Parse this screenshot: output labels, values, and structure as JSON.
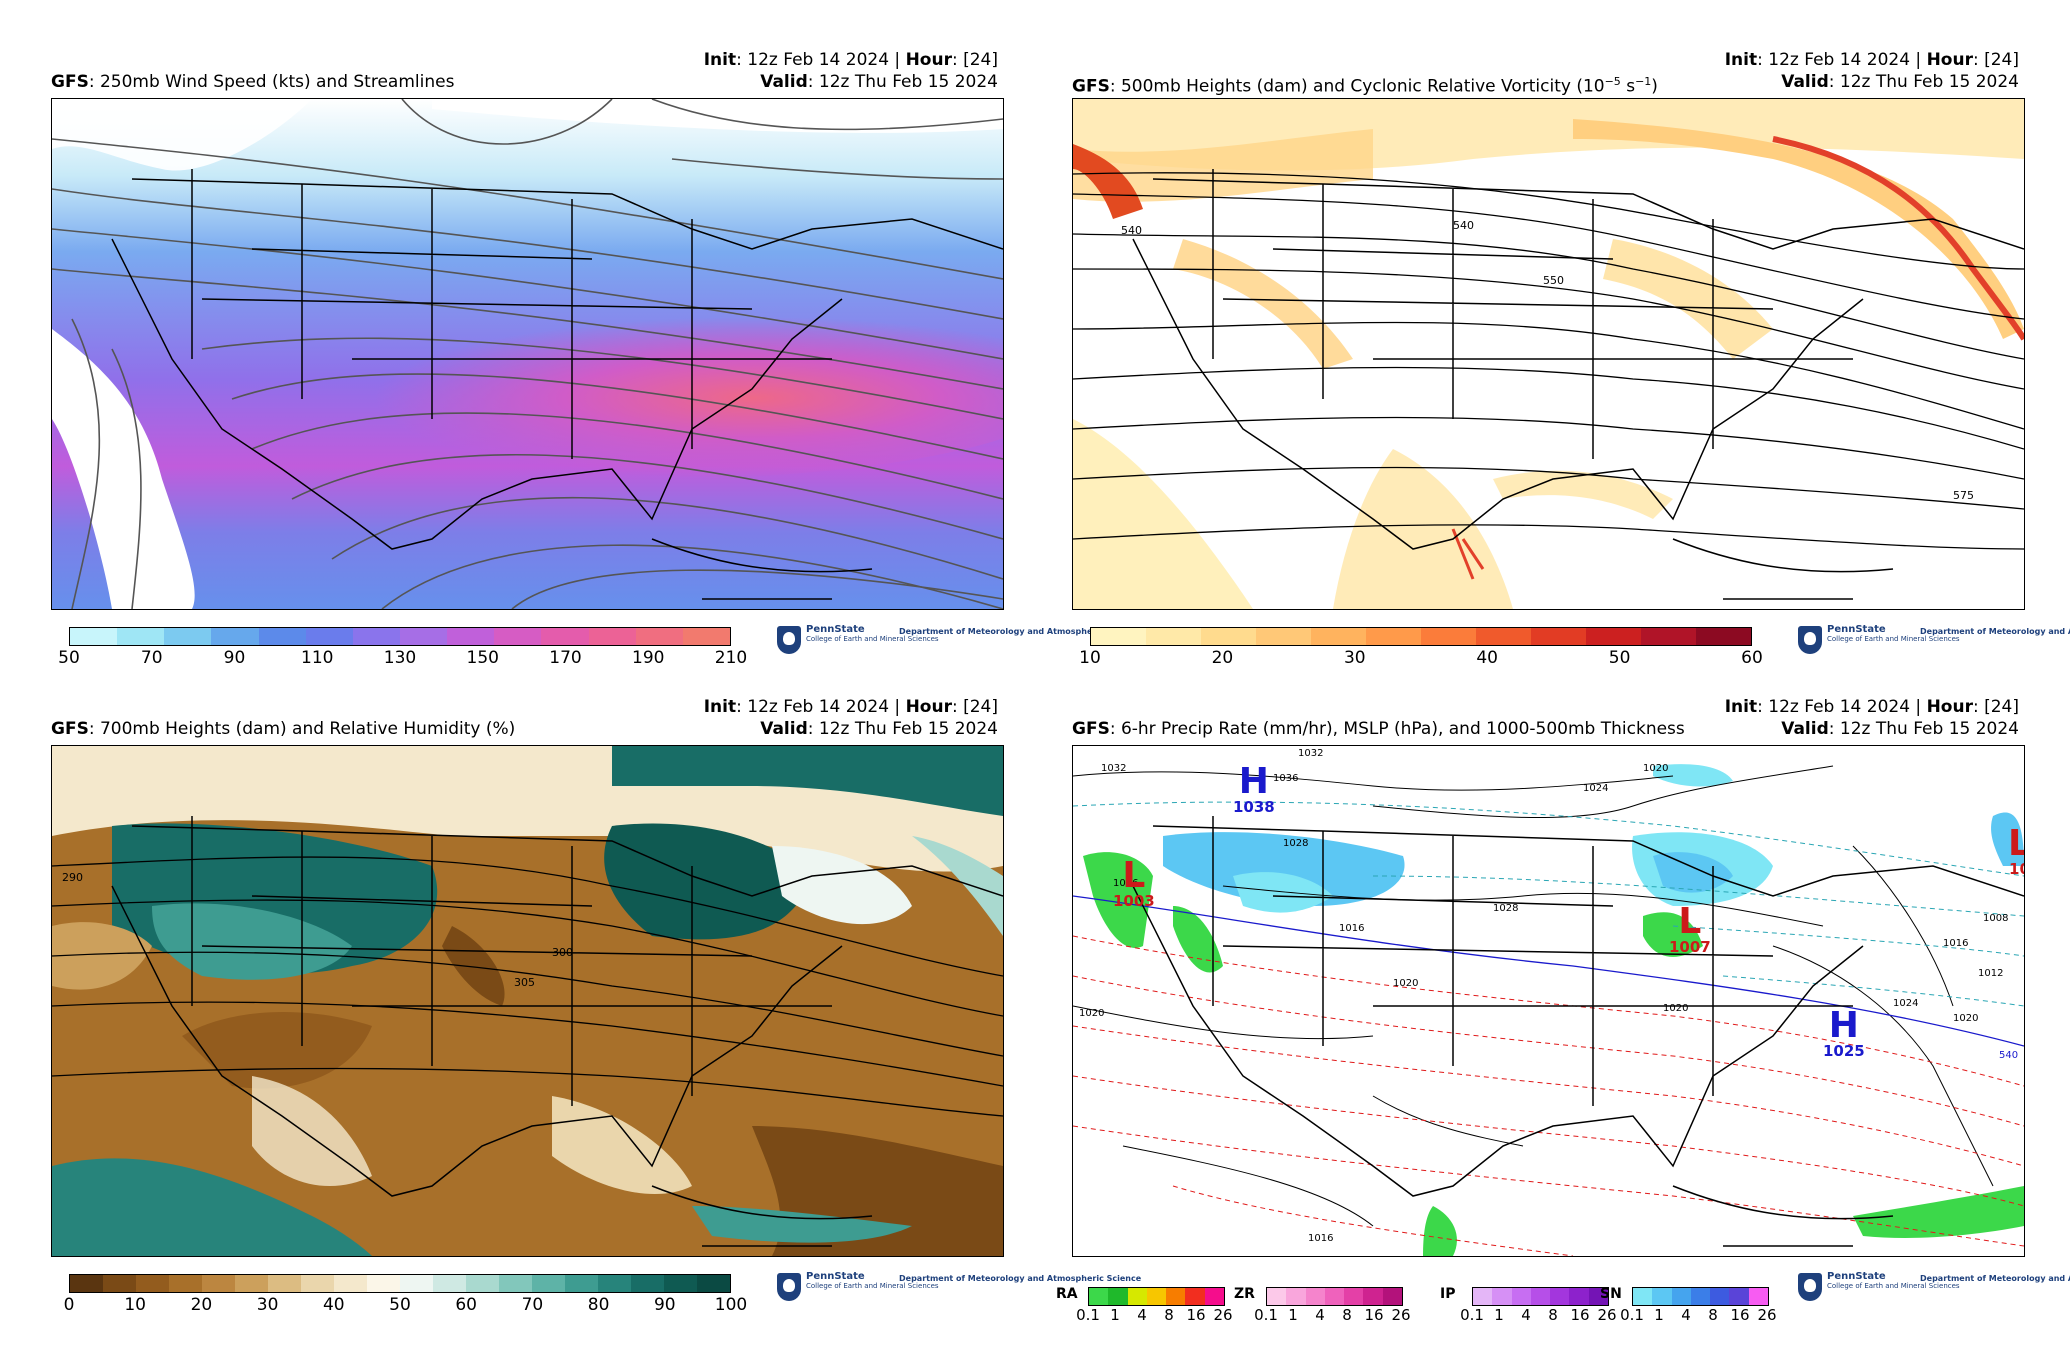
{
  "common": {
    "init_label": "Init",
    "init_value": ": 12z Feb 14 2024 | ",
    "hour_label": "Hour",
    "hour_value": ": [24]",
    "valid_label": "Valid",
    "valid_value": ": 12z Thu Feb 15 2024",
    "model": "GFS",
    "logo_name": "PennState",
    "logo_college": "College of Earth and Mineral Sciences",
    "logo_dept": "Department of Meteorology and Atmospheric Science"
  },
  "panels": [
    {
      "title": ": 250mb Wind Speed (kts) and Streamlines",
      "colorbar": {
        "ticks": [
          "50",
          "70",
          "90",
          "110",
          "130",
          "150",
          "170",
          "190",
          "210"
        ],
        "colors": [
          "#c8f5fb",
          "#9fe6f5",
          "#7ccaf0",
          "#66a8ec",
          "#5c8aea",
          "#6a7cec",
          "#8a74ec",
          "#a66ee6",
          "#c060da",
          "#d65cc4",
          "#e45cac",
          "#ec6296",
          "#f06e80",
          "#f27a6e"
        ]
      }
    },
    {
      "title": ": 500mb Heights (dam) and Cyclonic Relative Vorticity (10",
      "title_sup1": "−5",
      "title_mid": " s",
      "title_sup2": "−1",
      "title_end": ")",
      "colorbar": {
        "ticks": [
          "10",
          "20",
          "30",
          "40",
          "50",
          "60"
        ],
        "colors": [
          "#fff4c0",
          "#ffe9a8",
          "#ffdb8e",
          "#ffc877",
          "#ffb35e",
          "#ff9a4a",
          "#fb7c3a",
          "#f05a2c",
          "#e23c24",
          "#cc2020",
          "#b01428",
          "#8c0a22"
        ]
      },
      "contour_labels": [
        "540",
        "540",
        "550",
        "575"
      ]
    },
    {
      "title": ": 700mb Heights (dam) and Relative Humidity (%)",
      "colorbar": {
        "ticks": [
          "0",
          "10",
          "20",
          "30",
          "40",
          "50",
          "60",
          "70",
          "80",
          "90",
          "100"
        ],
        "colors": [
          "#5a3510",
          "#7a4a16",
          "#935c1e",
          "#a8702a",
          "#bc8640",
          "#cca05c",
          "#dcbc82",
          "#ead6ac",
          "#f4e8cc",
          "#fbf6e8",
          "#eef6f2",
          "#cfe9e3",
          "#a9d9cf",
          "#82c7bb",
          "#5eb3a7",
          "#3e9c91",
          "#27847b",
          "#186d66",
          "#0f5a52",
          "#0b4a43"
        ]
      },
      "contour_labels": [
        "290",
        "305",
        "300"
      ]
    },
    {
      "title": ": 6-hr Precip Rate (mm/hr), MSLP (hPa), and 1000-500mb Thickness",
      "precip_bars": [
        {
          "label": "RA",
          "colors": [
            "#3cd84a",
            "#1fb92b",
            "#d6e800",
            "#f7c600",
            "#f77d00",
            "#f22e1f",
            "#f50d8c"
          ]
        },
        {
          "label": "ZR",
          "colors": [
            "#fcc9e9",
            "#f9a6dc",
            "#f584cc",
            "#ef62bc",
            "#e440a7",
            "#cf2390",
            "#b3127b"
          ]
        },
        {
          "label": "IP",
          "colors": [
            "#e4b6f7",
            "#d690f5",
            "#c76ef2",
            "#b64fe8",
            "#a336dd",
            "#8d22cc",
            "#7414b5"
          ]
        },
        {
          "label": "SN",
          "colors": [
            "#7fe6f5",
            "#5cc7f3",
            "#45a4ee",
            "#3b7ee8",
            "#3d5be0",
            "#5a44d8",
            "#f75cf2"
          ]
        }
      ],
      "precip_ticks": [
        "0.1",
        "1",
        "4",
        "8",
        "16",
        "26"
      ],
      "systems": [
        {
          "type": "H",
          "value": "1038",
          "color": "#1a1acc"
        },
        {
          "type": "L",
          "value": "1003",
          "color": "#cc1a1a"
        },
        {
          "type": "L",
          "value": "1007",
          "color": "#cc1a1a"
        },
        {
          "type": "H",
          "value": "1025",
          "color": "#1a1acc"
        },
        {
          "type": "L",
          "value": "10",
          "color": "#cc1a1a"
        }
      ],
      "isobar_labels": [
        "1032",
        "1036",
        "1032",
        "1024",
        "1020",
        "1028",
        "1028",
        "1016",
        "1020",
        "1020",
        "1024",
        "1016",
        "1012",
        "1008",
        "1020",
        "1016",
        "1016",
        "1020"
      ],
      "thickness_label": "540"
    }
  ]
}
